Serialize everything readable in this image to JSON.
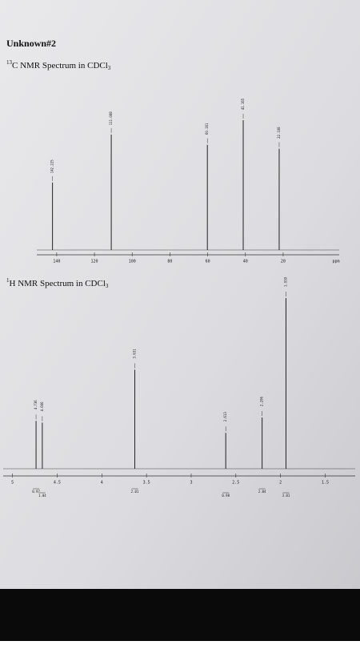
{
  "document_title": "Unknown#2",
  "chart_data": [
    {
      "type": "stem",
      "title_sup": "13",
      "title": "C NMR Spectrum in CDCl",
      "title_sub": "3",
      "x_label": "ppm",
      "x": [
        142.225,
        111.088,
        60.161,
        41.165,
        22.108
      ],
      "values": [
        52,
        89,
        81,
        100,
        78
      ],
      "xlim": [
        148,
        -8
      ],
      "xticks": [
        140,
        120,
        100,
        80,
        60,
        40,
        20
      ],
      "ylim": [
        0,
        100
      ],
      "color": "#222222"
    },
    {
      "type": "stem",
      "title_sup": "1",
      "title": "H NMR Spectrum in CDCl",
      "title_sub": "3",
      "x": [
        4.736,
        4.666,
        3.631,
        2.613,
        2.206,
        1.939
      ],
      "values": [
        28,
        27,
        58,
        21,
        30,
        100
      ],
      "integrals": [
        0.97,
        1.04,
        2.01,
        0.98,
        2.04,
        3.01
      ],
      "xlim": [
        5.05,
        1.2
      ],
      "xticks": [
        5.0,
        4.5,
        4.0,
        3.5,
        3.0,
        2.5,
        2.0,
        1.5
      ],
      "ylim": [
        0,
        100
      ],
      "color": "#222222"
    }
  ]
}
